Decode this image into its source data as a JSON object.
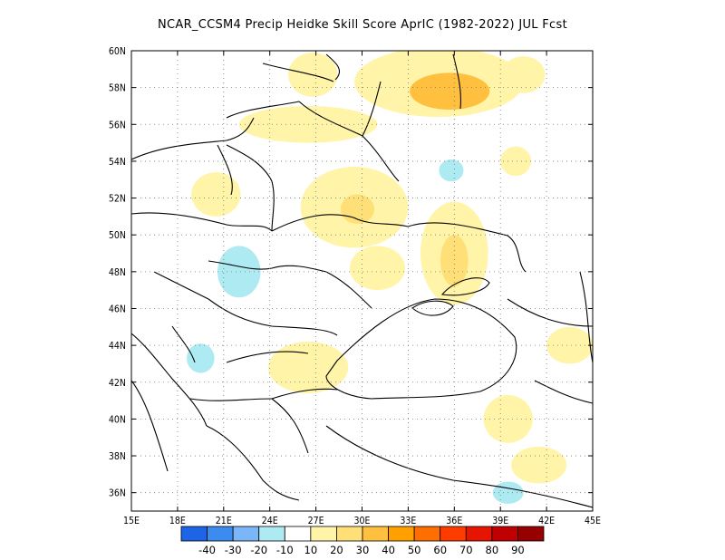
{
  "title": "NCAR_CCSM4 Precip Heidke Skill Score AprIC (1982-2022) JUL Fcst",
  "map": {
    "lon_range": [
      15,
      45
    ],
    "lat_range": [
      35,
      60
    ],
    "lon_ticks": [
      {
        "value": 15,
        "label": "15E"
      },
      {
        "value": 18,
        "label": "18E"
      },
      {
        "value": 21,
        "label": "21E"
      },
      {
        "value": 24,
        "label": "24E"
      },
      {
        "value": 27,
        "label": "27E"
      },
      {
        "value": 30,
        "label": "30E"
      },
      {
        "value": 33,
        "label": "33E"
      },
      {
        "value": 36,
        "label": "36E"
      },
      {
        "value": 39,
        "label": "39E"
      },
      {
        "value": 42,
        "label": "42E"
      },
      {
        "value": 45,
        "label": "45E"
      }
    ],
    "lat_ticks": [
      {
        "value": 36,
        "label": "36N"
      },
      {
        "value": 38,
        "label": "38N"
      },
      {
        "value": 40,
        "label": "40N"
      },
      {
        "value": 42,
        "label": "42N"
      },
      {
        "value": 44,
        "label": "44N"
      },
      {
        "value": 46,
        "label": "46N"
      },
      {
        "value": 48,
        "label": "48N"
      },
      {
        "value": 50,
        "label": "50N"
      },
      {
        "value": 52,
        "label": "52N"
      },
      {
        "value": 54,
        "label": "54N"
      },
      {
        "value": 56,
        "label": "56N"
      },
      {
        "value": 58,
        "label": "58N"
      },
      {
        "value": 60,
        "label": "60N"
      }
    ],
    "grid": "dotted",
    "field_patches": [
      {
        "lon": 35.0,
        "lat": 58.3,
        "rx": 5.5,
        "ry": 1.9,
        "level": 1
      },
      {
        "lon": 35.7,
        "lat": 57.8,
        "rx": 2.6,
        "ry": 1.0,
        "level": 3
      },
      {
        "lon": 26.8,
        "lat": 58.7,
        "rx": 1.6,
        "ry": 1.2,
        "level": 1
      },
      {
        "lon": 40.5,
        "lat": 58.7,
        "rx": 1.4,
        "ry": 1.0,
        "level": 1
      },
      {
        "lon": 26.5,
        "lat": 56.0,
        "rx": 4.5,
        "ry": 1.0,
        "level": 1
      },
      {
        "lon": 29.5,
        "lat": 51.5,
        "rx": 3.5,
        "ry": 2.2,
        "level": 1
      },
      {
        "lon": 29.7,
        "lat": 51.4,
        "rx": 1.1,
        "ry": 0.8,
        "level": 2
      },
      {
        "lon": 36.0,
        "lat": 49.0,
        "rx": 2.2,
        "ry": 2.8,
        "level": 1
      },
      {
        "lon": 36.0,
        "lat": 48.6,
        "rx": 0.9,
        "ry": 1.4,
        "level": 2
      },
      {
        "lon": 31.0,
        "lat": 48.2,
        "rx": 1.8,
        "ry": 1.2,
        "level": 1
      },
      {
        "lon": 20.5,
        "lat": 52.2,
        "rx": 1.6,
        "ry": 1.2,
        "level": 1
      },
      {
        "lon": 26.5,
        "lat": 42.8,
        "rx": 2.6,
        "ry": 1.4,
        "level": 1
      },
      {
        "lon": 39.5,
        "lat": 40.0,
        "rx": 1.6,
        "ry": 1.3,
        "level": 1
      },
      {
        "lon": 41.5,
        "lat": 37.5,
        "rx": 1.8,
        "ry": 1.0,
        "level": 1
      },
      {
        "lon": 43.5,
        "lat": 44.0,
        "rx": 1.5,
        "ry": 1.0,
        "level": 1
      },
      {
        "lon": 40.0,
        "lat": 54.0,
        "rx": 1.0,
        "ry": 0.8,
        "level": 1
      },
      {
        "lon": 22.0,
        "lat": 48.0,
        "rx": 1.4,
        "ry": 1.4,
        "level": -1
      },
      {
        "lon": 35.8,
        "lat": 53.5,
        "rx": 0.8,
        "ry": 0.6,
        "level": -1
      },
      {
        "lon": 39.5,
        "lat": 36.0,
        "rx": 1.0,
        "ry": 0.6,
        "level": -1
      },
      {
        "lon": 19.5,
        "lat": 43.3,
        "rx": 0.9,
        "ry": 0.8,
        "level": -1
      }
    ]
  },
  "colorbar": {
    "labels": [
      "-40",
      "-30",
      "-20",
      "-10",
      "10",
      "20",
      "30",
      "40",
      "50",
      "60",
      "70",
      "80",
      "90"
    ],
    "colors": [
      "#1e64e6",
      "#3c8cf0",
      "#7ab6f8",
      "#aeeaf2",
      "#ffffff",
      "#fff4a8",
      "#ffe078",
      "#ffc040",
      "#ffa000",
      "#ff6e00",
      "#ff3c00",
      "#e61400",
      "#c00000",
      "#960000"
    ]
  }
}
